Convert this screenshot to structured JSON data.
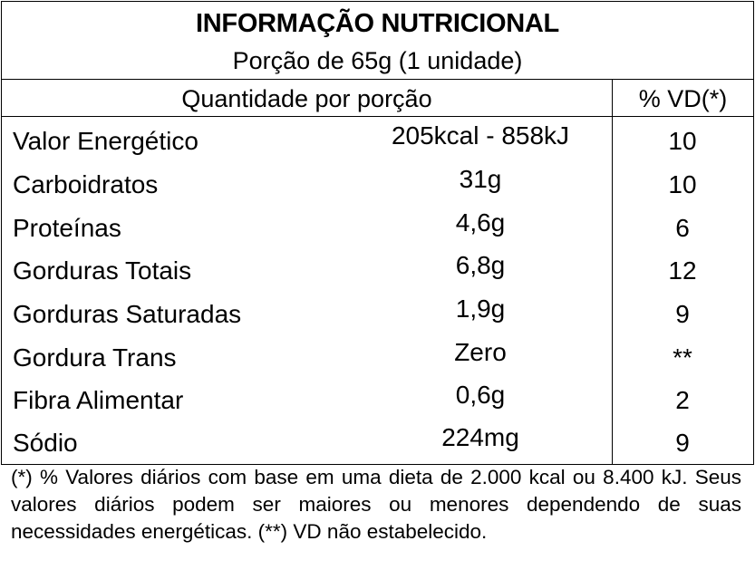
{
  "label": {
    "title": "INFORMAÇÃO NUTRICIONAL",
    "portion": "Porção de 65g (1 unidade)",
    "header_quantity": "Quantidade por porção",
    "header_vd": "% VD(*)",
    "rows": [
      {
        "name": "Valor Energético",
        "amount": "205kcal - 858kJ",
        "vd": "10"
      },
      {
        "name": "Carboidratos",
        "amount": "31g",
        "vd": "10"
      },
      {
        "name": "Proteínas",
        "amount": "4,6g",
        "vd": "6"
      },
      {
        "name": "Gorduras Totais",
        "amount": "6,8g",
        "vd": "12"
      },
      {
        "name": "Gorduras Saturadas",
        "amount": "1,9g",
        "vd": "9"
      },
      {
        "name": "Gordura Trans",
        "amount": "Zero",
        "vd": "**"
      },
      {
        "name": "Fibra Alimentar",
        "amount": "0,6g",
        "vd": "2"
      },
      {
        "name": "Sódio",
        "amount": "224mg",
        "vd": "9"
      }
    ],
    "footnote": "(*) % Valores diários com base em uma dieta de 2.000 kcal ou 8.400 kJ. Seus valores diários podem ser maiores ou menores dependendo de suas necessidades energéticas. (**) VD não estabelecido."
  }
}
